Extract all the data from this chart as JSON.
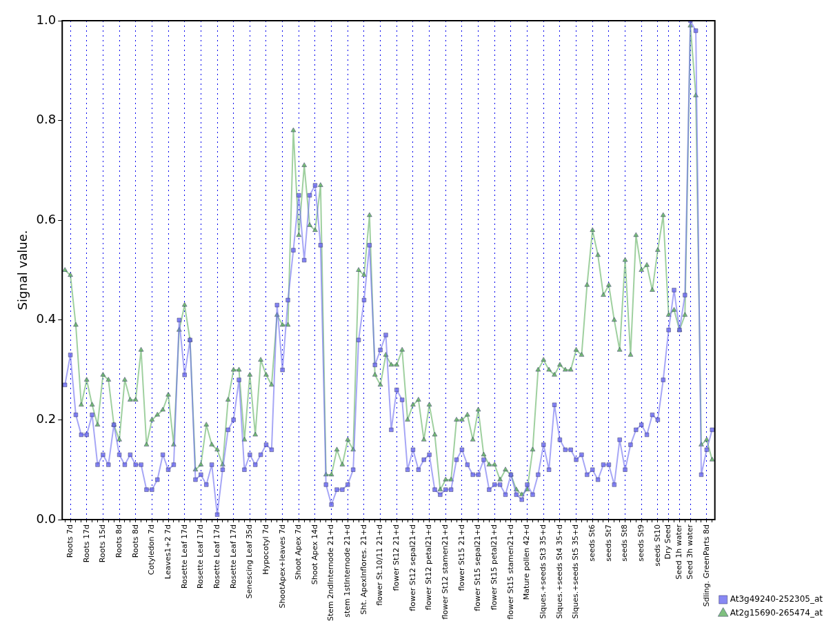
{
  "chart_data": {
    "type": "line",
    "ylabel": "Signal value.",
    "categories": [
      null,
      "Roots 7d",
      null,
      null,
      "Roots 17d",
      null,
      null,
      "Roots 15d",
      null,
      null,
      "Roots 8d",
      null,
      null,
      "Roots 8d",
      null,
      null,
      "Cotyledon 7d",
      null,
      null,
      "Leaves1+2 7d",
      null,
      null,
      "Rosette Leaf 17d",
      null,
      null,
      "Rosette Leaf 17d",
      null,
      null,
      "Rosette Leaf 17d",
      null,
      null,
      "Rosette Leaf 17d",
      null,
      null,
      "Senescing Leaf 35d",
      null,
      null,
      "Hypocotyl 7d",
      null,
      null,
      "ShootApex+leaves 7d",
      null,
      null,
      "Shoot Apex 7d",
      null,
      null,
      "Shoot Apex 14d",
      null,
      null,
      "Stem 2ndInternode 21+d",
      null,
      null,
      "stem 1stInternode 21+d",
      null,
      null,
      "Sht. ApexInflores. 21+d",
      null,
      null,
      "flower St.10/11 21+d",
      null,
      null,
      "flower St12 21+d",
      null,
      null,
      "flower St12 sepal21+d",
      null,
      null,
      "flower St12 petal21+d",
      null,
      null,
      "flower St12 stamen21+d",
      null,
      null,
      "flower St15 21+d",
      null,
      null,
      "flower St15 sepal21+d",
      null,
      null,
      "flower St15 petal21+d",
      null,
      null,
      "flower St15 stamen21+d",
      null,
      null,
      "Mature pollen 42+d",
      null,
      null,
      "Slques.+seeds St3 35+d",
      null,
      null,
      "Slques.+seeds St4 35+d",
      null,
      null,
      "Slques.+seeds St5 35+d",
      null,
      null,
      "seeds St6",
      null,
      null,
      "seeds St7",
      null,
      null,
      "seeds St8",
      null,
      null,
      "seeds St9",
      null,
      null,
      "seeds St10",
      null,
      "Dry Seed",
      null,
      "Seed 1h water",
      null,
      "Seed 3h water",
      null,
      null,
      "Sdling. GreenParts 8d",
      null
    ],
    "series": [
      {
        "name": "At3g49240-252305_at",
        "color": "#6a6af0",
        "marker": "square",
        "values": [
          0.27,
          0.33,
          0.21,
          0.17,
          0.17,
          0.21,
          0.11,
          0.13,
          0.11,
          0.19,
          0.13,
          0.11,
          0.13,
          0.11,
          0.11,
          0.06,
          0.06,
          0.08,
          0.13,
          0.1,
          0.11,
          0.4,
          0.29,
          0.36,
          0.08,
          0.09,
          0.07,
          0.11,
          0.01,
          0.1,
          0.18,
          0.2,
          0.28,
          0.1,
          0.13,
          0.11,
          0.13,
          0.15,
          0.14,
          0.43,
          0.3,
          0.44,
          0.54,
          0.65,
          0.52,
          0.65,
          0.67,
          0.55,
          0.07,
          0.03,
          0.06,
          0.06,
          0.07,
          0.1,
          0.36,
          0.44,
          0.55,
          0.31,
          0.34,
          0.37,
          0.18,
          0.26,
          0.24,
          0.1,
          0.14,
          0.1,
          0.12,
          0.13,
          0.06,
          0.05,
          0.06,
          0.06,
          0.12,
          0.14,
          0.11,
          0.09,
          0.09,
          0.12,
          0.06,
          0.07,
          0.07,
          0.05,
          0.09,
          0.05,
          0.04,
          0.07,
          0.05,
          0.09,
          0.15,
          0.1,
          0.23,
          0.16,
          0.14,
          0.14,
          0.12,
          0.13,
          0.09,
          0.1,
          0.08,
          0.11,
          0.11,
          0.07,
          0.16,
          0.1,
          0.15,
          0.18,
          0.19,
          0.17,
          0.21,
          0.2,
          0.28,
          0.38,
          0.46,
          0.38,
          0.45,
          1.0,
          0.98,
          0.09,
          0.14,
          0.18
        ]
      },
      {
        "name": "At2g15690-265474_at",
        "color": "#5fb05f",
        "marker": "triangle",
        "values": [
          0.5,
          0.49,
          0.39,
          0.23,
          0.28,
          0.23,
          0.19,
          0.29,
          0.28,
          0.19,
          0.16,
          0.28,
          0.24,
          0.24,
          0.34,
          0.15,
          0.2,
          0.21,
          0.22,
          0.25,
          0.15,
          0.38,
          0.43,
          0.36,
          0.1,
          0.11,
          0.19,
          0.15,
          0.14,
          0.11,
          0.24,
          0.3,
          0.3,
          0.16,
          0.29,
          0.17,
          0.32,
          0.29,
          0.27,
          0.41,
          0.39,
          0.39,
          0.78,
          0.57,
          0.71,
          0.59,
          0.58,
          0.67,
          0.09,
          0.09,
          0.14,
          0.11,
          0.16,
          0.14,
          0.5,
          0.49,
          0.61,
          0.29,
          0.27,
          0.33,
          0.31,
          0.31,
          0.34,
          0.2,
          0.23,
          0.24,
          0.16,
          0.23,
          0.17,
          0.06,
          0.08,
          0.08,
          0.2,
          0.2,
          0.21,
          0.16,
          0.22,
          0.13,
          0.11,
          0.11,
          0.08,
          0.1,
          0.09,
          0.06,
          0.05,
          0.06,
          0.14,
          0.3,
          0.32,
          0.3,
          0.29,
          0.31,
          0.3,
          0.3,
          0.34,
          0.33,
          0.47,
          0.58,
          0.53,
          0.45,
          0.47,
          0.4,
          0.34,
          0.52,
          0.33,
          0.57,
          0.5,
          0.51,
          0.46,
          0.54,
          0.61,
          0.41,
          0.42,
          0.38,
          0.41,
          0.99,
          0.85,
          0.15,
          0.16,
          0.12
        ]
      }
    ],
    "ylim": [
      0,
      1
    ],
    "yticks": [
      {
        "value": 0,
        "label": "0.0"
      },
      {
        "value": 0.2,
        "label": "0.2"
      },
      {
        "value": 0.4,
        "label": "0.4"
      },
      {
        "value": 0.6,
        "label": "0.6"
      },
      {
        "value": 0.8,
        "label": "0.8"
      },
      {
        "value": 1,
        "label": "1.0"
      }
    ],
    "grid": "x",
    "legend": "bottom right",
    "line_style": "solid"
  }
}
